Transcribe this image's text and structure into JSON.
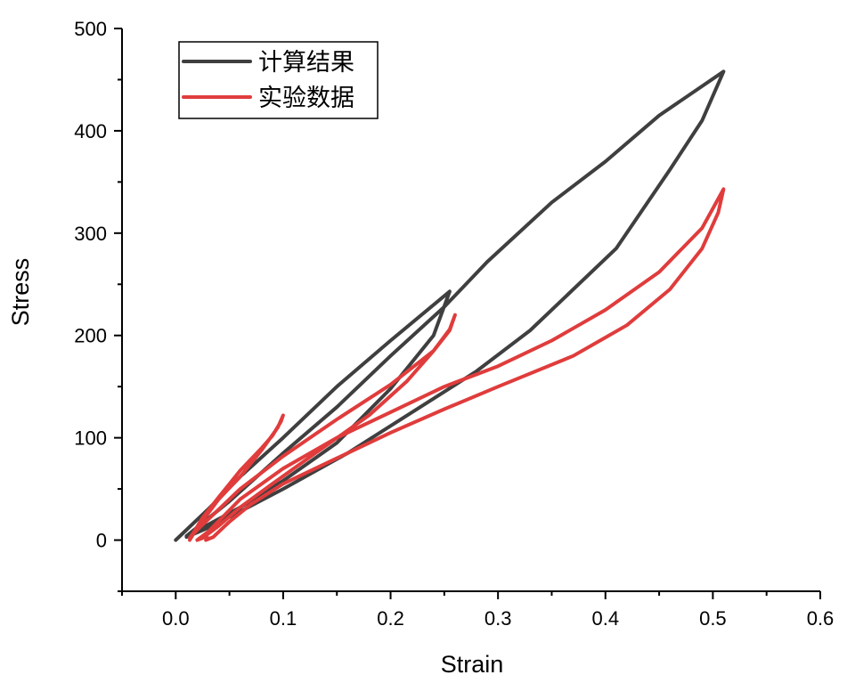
{
  "chart_data": {
    "type": "line",
    "xlabel": "Strain",
    "ylabel": "Stress",
    "xlim": [
      -0.05,
      0.6
    ],
    "ylim": [
      -50,
      500
    ],
    "xticks": [
      0.0,
      0.1,
      0.2,
      0.3,
      0.4,
      0.5,
      0.6
    ],
    "xtick_labels": [
      "0.0",
      "0.1",
      "0.2",
      "0.3",
      "0.4",
      "0.5",
      "0.6"
    ],
    "yticks": [
      0,
      100,
      200,
      300,
      400,
      500
    ],
    "ytick_labels": [
      "0",
      "100",
      "200",
      "300",
      "400",
      "500"
    ],
    "grid": false,
    "legend_position": "top-left",
    "series": [
      {
        "name": "计算结果",
        "color": "#3f3f3f",
        "points": [
          [
            0.0,
            0
          ],
          [
            0.03,
            30
          ],
          [
            0.06,
            62
          ],
          [
            0.1,
            100
          ],
          [
            0.15,
            150
          ],
          [
            0.2,
            195
          ],
          [
            0.255,
            243
          ],
          [
            0.24,
            200
          ],
          [
            0.2,
            148
          ],
          [
            0.15,
            95
          ],
          [
            0.1,
            58
          ],
          [
            0.06,
            32
          ],
          [
            0.03,
            15
          ],
          [
            0.01,
            4
          ],
          [
            0.05,
            38
          ],
          [
            0.1,
            85
          ],
          [
            0.15,
            130
          ],
          [
            0.2,
            180
          ],
          [
            0.25,
            228
          ],
          [
            0.29,
            272
          ],
          [
            0.35,
            330
          ],
          [
            0.4,
            370
          ],
          [
            0.45,
            415
          ],
          [
            0.51,
            458
          ],
          [
            0.49,
            410
          ],
          [
            0.46,
            362
          ],
          [
            0.41,
            285
          ],
          [
            0.33,
            205
          ],
          [
            0.28,
            165
          ],
          [
            0.22,
            125
          ],
          [
            0.16,
            85
          ],
          [
            0.1,
            50
          ],
          [
            0.06,
            28
          ],
          [
            0.03,
            12
          ],
          [
            0.01,
            3
          ]
        ]
      },
      {
        "name": "实验数据",
        "color": "#e03c3c",
        "points": [
          [
            0.013,
            0
          ],
          [
            0.02,
            12
          ],
          [
            0.04,
            40
          ],
          [
            0.06,
            62
          ],
          [
            0.08,
            88
          ],
          [
            0.095,
            110
          ],
          [
            0.1,
            122
          ],
          [
            0.098,
            116
          ],
          [
            0.09,
            102
          ],
          [
            0.08,
            90
          ],
          [
            0.06,
            68
          ],
          [
            0.04,
            42
          ],
          [
            0.025,
            22
          ],
          [
            0.017,
            8
          ],
          [
            0.013,
            2
          ],
          [
            0.02,
            10
          ],
          [
            0.06,
            50
          ],
          [
            0.1,
            82
          ],
          [
            0.15,
            118
          ],
          [
            0.2,
            152
          ],
          [
            0.24,
            185
          ],
          [
            0.255,
            205
          ],
          [
            0.26,
            220
          ],
          [
            0.255,
            206
          ],
          [
            0.24,
            185
          ],
          [
            0.215,
            155
          ],
          [
            0.18,
            122
          ],
          [
            0.13,
            85
          ],
          [
            0.09,
            55
          ],
          [
            0.06,
            32
          ],
          [
            0.04,
            14
          ],
          [
            0.025,
            2
          ],
          [
            0.02,
            0
          ],
          [
            0.03,
            8
          ],
          [
            0.06,
            40
          ],
          [
            0.1,
            70
          ],
          [
            0.15,
            100
          ],
          [
            0.2,
            125
          ],
          [
            0.25,
            150
          ],
          [
            0.3,
            170
          ],
          [
            0.35,
            195
          ],
          [
            0.4,
            225
          ],
          [
            0.45,
            262
          ],
          [
            0.49,
            305
          ],
          [
            0.51,
            343
          ],
          [
            0.505,
            320
          ],
          [
            0.49,
            285
          ],
          [
            0.46,
            245
          ],
          [
            0.42,
            210
          ],
          [
            0.37,
            180
          ],
          [
            0.3,
            150
          ],
          [
            0.25,
            128
          ],
          [
            0.2,
            105
          ],
          [
            0.15,
            80
          ],
          [
            0.1,
            55
          ],
          [
            0.07,
            35
          ],
          [
            0.05,
            18
          ],
          [
            0.035,
            3
          ],
          [
            0.028,
            0
          ],
          [
            0.03,
            2
          ]
        ]
      }
    ]
  }
}
